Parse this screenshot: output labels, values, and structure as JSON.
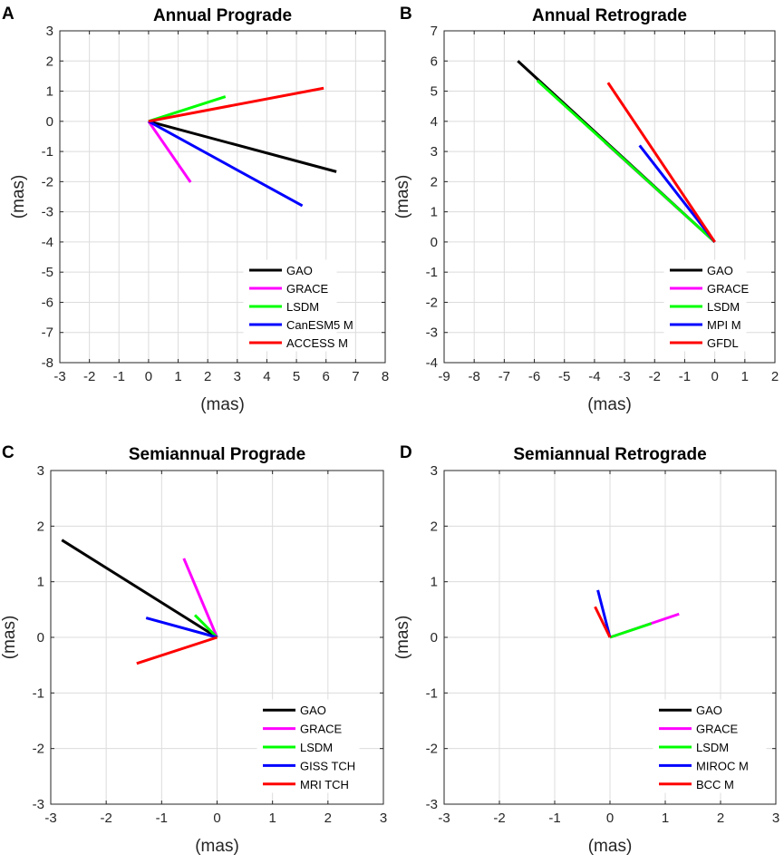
{
  "chart_data": [
    {
      "type": "line",
      "panel_letter": "A",
      "title": "Annual Prograde",
      "xlabel": "(mas)",
      "ylabel": "(mas)",
      "xlim": [
        -3,
        8
      ],
      "ylim": [
        -8,
        3
      ],
      "xticks": [
        -3,
        -2,
        -1,
        0,
        1,
        2,
        3,
        4,
        5,
        6,
        7,
        8
      ],
      "yticks": [
        -8,
        -7,
        -6,
        -5,
        -4,
        -3,
        -2,
        -1,
        0,
        1,
        2,
        3
      ],
      "grid": true,
      "legend_position": "bottom-right",
      "series": [
        {
          "name": "GAO",
          "color": "#000000",
          "from": [
            0,
            0
          ],
          "to": [
            6.35,
            -1.67
          ]
        },
        {
          "name": "GRACE",
          "color": "#ff00ff",
          "from": [
            0,
            0
          ],
          "to": [
            1.42,
            -2.02
          ]
        },
        {
          "name": "LSDM",
          "color": "#00ff00",
          "from": [
            0,
            0
          ],
          "to": [
            2.6,
            0.82
          ]
        },
        {
          "name": "CanESM5 M",
          "color": "#0000ff",
          "from": [
            0,
            0
          ],
          "to": [
            5.2,
            -2.8
          ]
        },
        {
          "name": "ACCESS M",
          "color": "#ff0000",
          "from": [
            0,
            0
          ],
          "to": [
            5.92,
            1.1
          ]
        }
      ]
    },
    {
      "type": "line",
      "panel_letter": "B",
      "title": "Annual Retrograde",
      "xlabel": "(mas)",
      "ylabel": "(mas)",
      "xlim": [
        -9,
        2
      ],
      "ylim": [
        -4,
        7
      ],
      "xticks": [
        -9,
        -8,
        -7,
        -6,
        -5,
        -4,
        -3,
        -2,
        -1,
        0,
        1,
        2
      ],
      "yticks": [
        -4,
        -3,
        -2,
        -1,
        0,
        1,
        2,
        3,
        4,
        5,
        6,
        7
      ],
      "grid": true,
      "legend_position": "bottom-right",
      "series": [
        {
          "name": "GAO",
          "color": "#000000",
          "from": [
            0,
            0
          ],
          "to": [
            -6.55,
            6.0
          ]
        },
        {
          "name": "GRACE",
          "color": "#ff00ff",
          "from": [
            0,
            0
          ],
          "to": [
            -3.65,
            3.3
          ]
        },
        {
          "name": "LSDM",
          "color": "#00ff00",
          "from": [
            0,
            0
          ],
          "to": [
            -5.9,
            5.35
          ]
        },
        {
          "name": "MPI M",
          "color": "#0000ff",
          "from": [
            0,
            0
          ],
          "to": [
            -2.5,
            3.2
          ]
        },
        {
          "name": "GFDL",
          "color": "#ff0000",
          "from": [
            0,
            0
          ],
          "to": [
            -3.55,
            5.28
          ]
        }
      ]
    },
    {
      "type": "line",
      "panel_letter": "C",
      "title": "Semiannual Prograde",
      "xlabel": "(mas)",
      "ylabel": "(mas)",
      "xlim": [
        -3,
        3
      ],
      "ylim": [
        -3,
        3
      ],
      "xticks": [
        -3,
        -2,
        -1,
        0,
        1,
        2,
        3
      ],
      "yticks": [
        -3,
        -2,
        -1,
        0,
        1,
        2,
        3
      ],
      "grid": true,
      "legend_position": "bottom-right",
      "series": [
        {
          "name": "GAO",
          "color": "#000000",
          "from": [
            0,
            0
          ],
          "to": [
            -2.8,
            1.75
          ]
        },
        {
          "name": "GRACE",
          "color": "#ff00ff",
          "from": [
            0,
            0
          ],
          "to": [
            -0.6,
            1.42
          ]
        },
        {
          "name": "LSDM",
          "color": "#00ff00",
          "from": [
            0,
            0
          ],
          "to": [
            -0.4,
            0.4
          ]
        },
        {
          "name": "GISS TCH",
          "color": "#0000ff",
          "from": [
            0,
            0
          ],
          "to": [
            -1.28,
            0.35
          ]
        },
        {
          "name": "MRI TCH",
          "color": "#ff0000",
          "from": [
            0,
            0
          ],
          "to": [
            -1.45,
            -0.47
          ]
        }
      ]
    },
    {
      "type": "line",
      "panel_letter": "D",
      "title": "Semiannual Retrograde",
      "xlabel": "(mas)",
      "ylabel": "(mas)",
      "xlim": [
        -3,
        3
      ],
      "ylim": [
        -3,
        3
      ],
      "xticks": [
        -3,
        -2,
        -1,
        0,
        1,
        2,
        3
      ],
      "yticks": [
        -3,
        -2,
        -1,
        0,
        1,
        2,
        3
      ],
      "grid": true,
      "legend_position": "bottom-right",
      "series": [
        {
          "name": "GAO",
          "color": "#000000",
          "from": [
            0,
            0
          ],
          "to": [
            0,
            0
          ]
        },
        {
          "name": "GRACE",
          "color": "#ff00ff",
          "from": [
            0,
            0
          ],
          "to": [
            1.25,
            0.42
          ]
        },
        {
          "name": "LSDM",
          "color": "#00ff00",
          "from": [
            0,
            0
          ],
          "to": [
            0.75,
            0.25
          ]
        },
        {
          "name": "MIROC M",
          "color": "#0000ff",
          "from": [
            0,
            0
          ],
          "to": [
            -0.22,
            0.85
          ]
        },
        {
          "name": "BCC M",
          "color": "#ff0000",
          "from": [
            0,
            0
          ],
          "to": [
            -0.27,
            0.55
          ]
        }
      ]
    }
  ]
}
